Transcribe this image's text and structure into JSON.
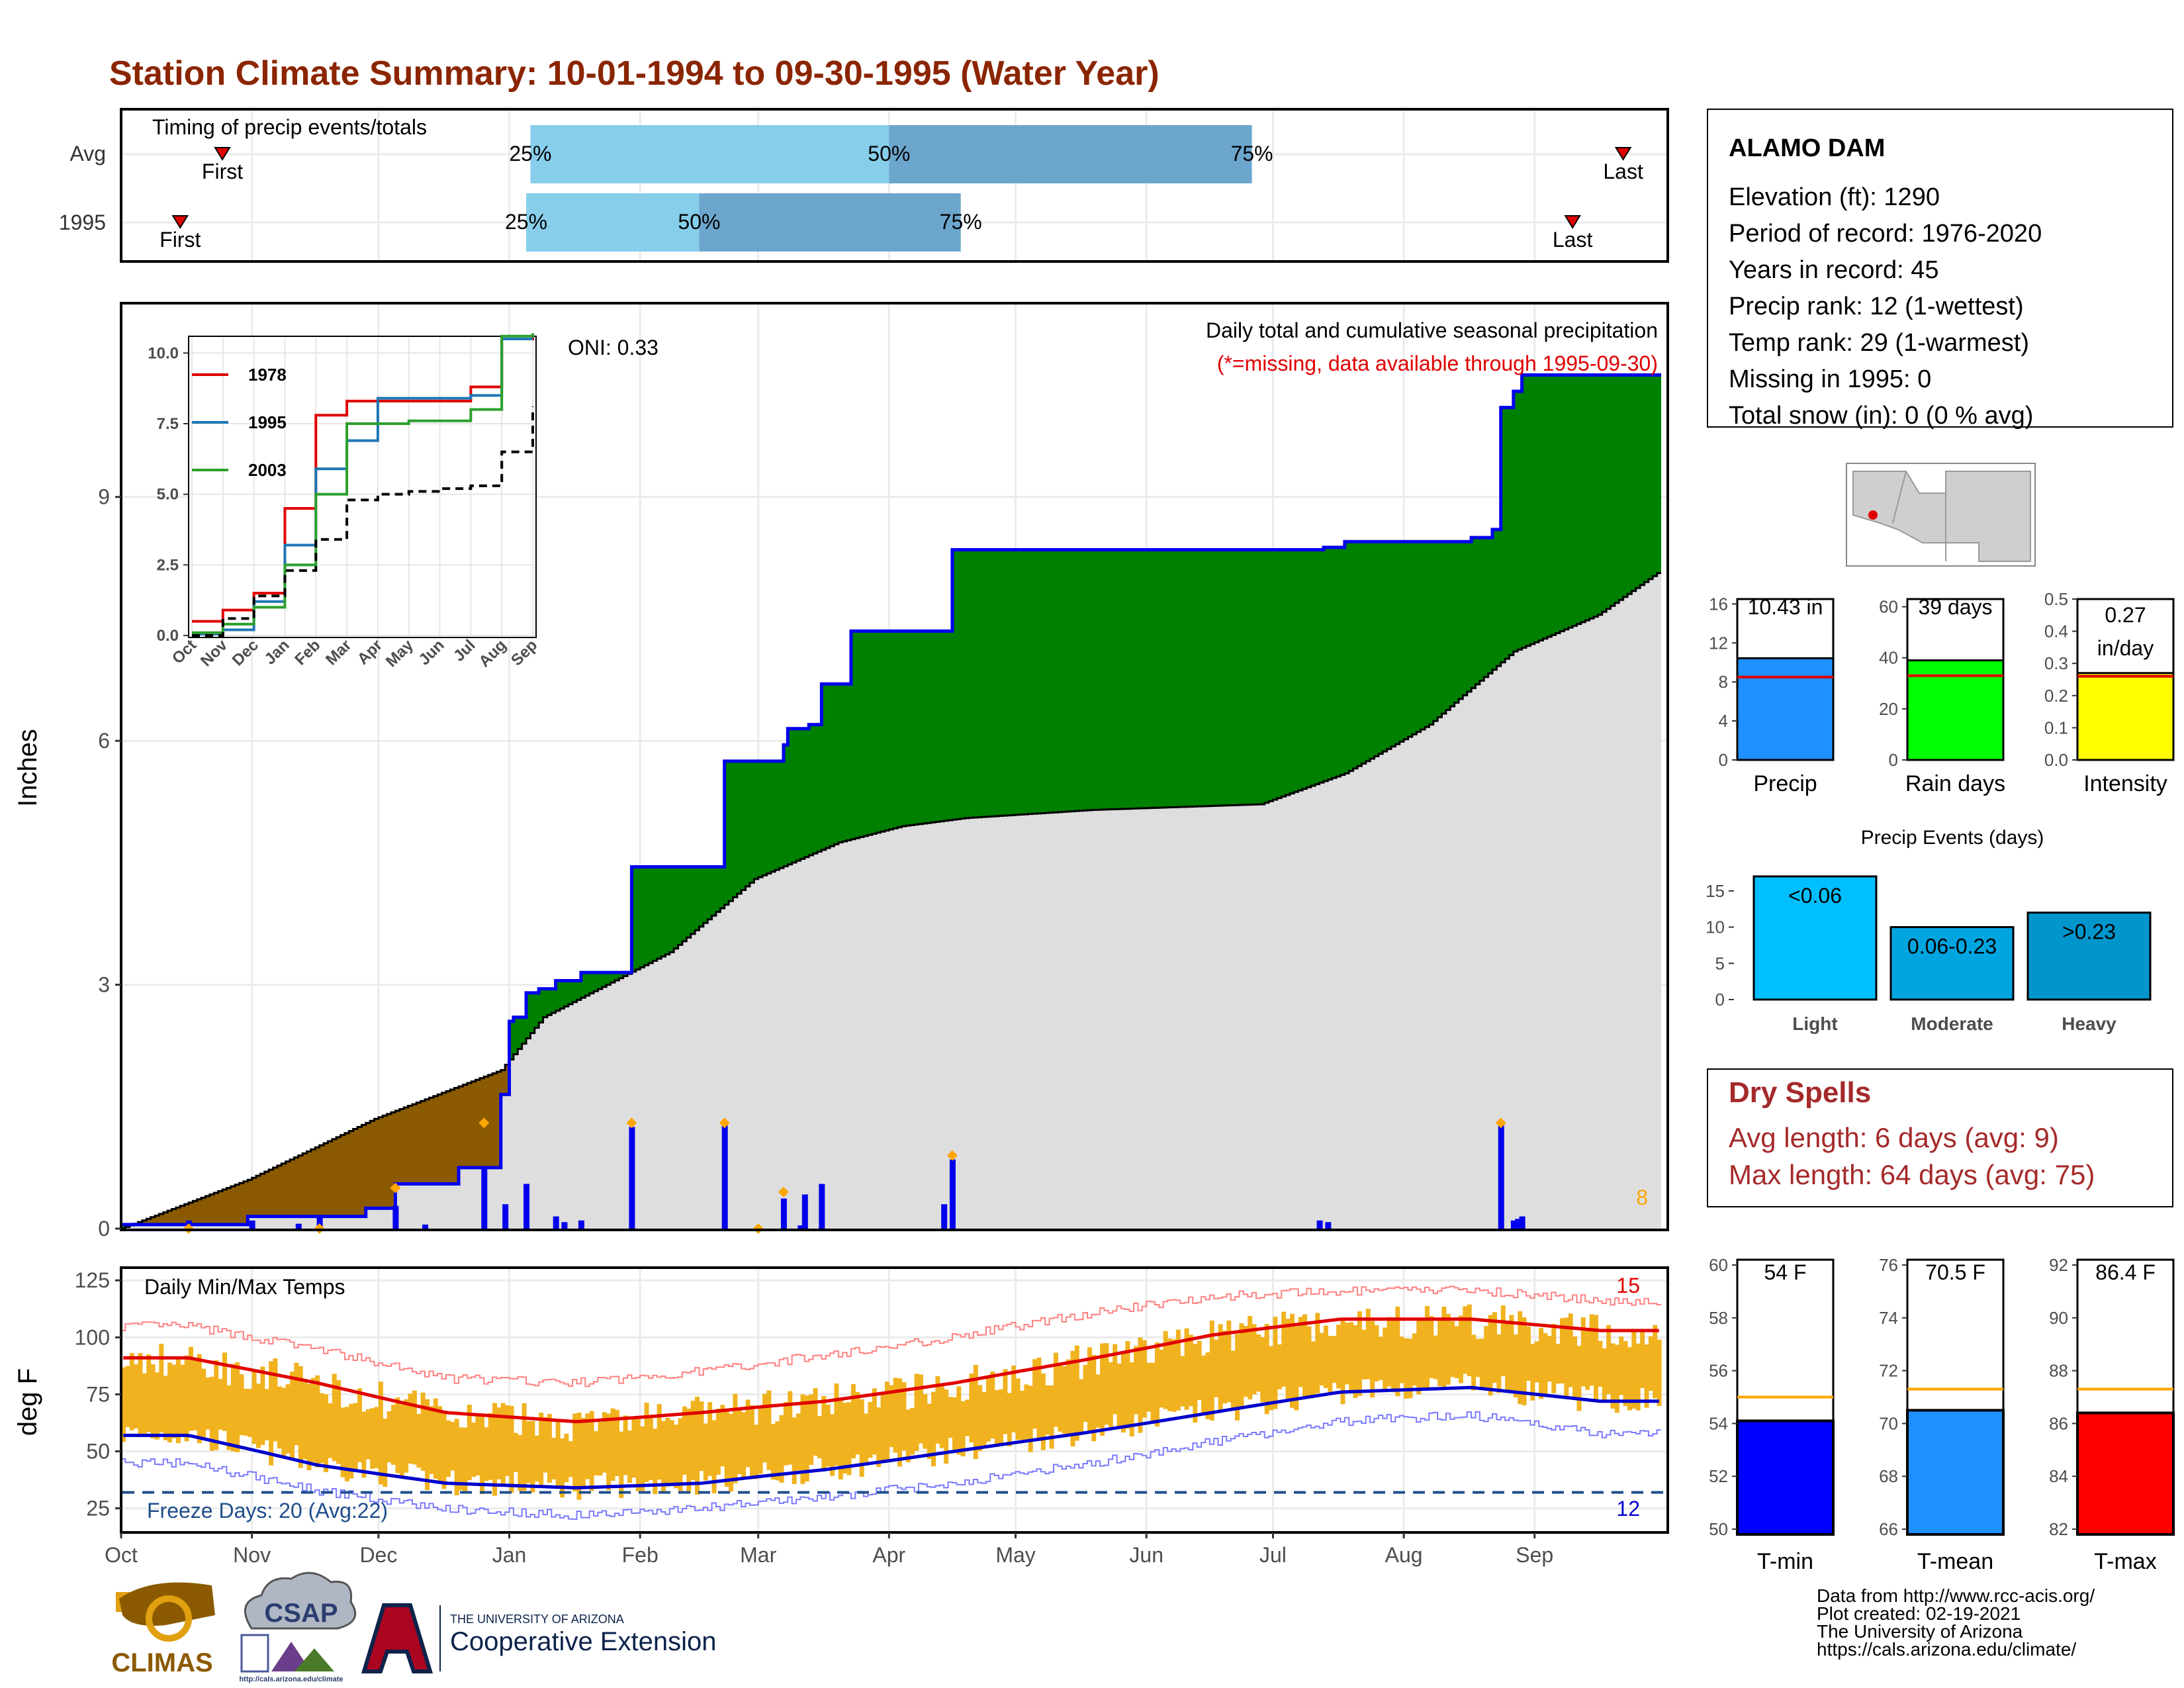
{
  "title": "Station Climate Summary: 10-01-1994 to 09-30-1995 (Water Year)",
  "months": [
    "Oct",
    "Nov",
    "Dec",
    "Jan",
    "Feb",
    "Mar",
    "Apr",
    "May",
    "Jun",
    "Jul",
    "Aug",
    "Sep"
  ],
  "colors": {
    "title": "#8b2500",
    "red": "#e00000",
    "dryspell": "#a52a2a",
    "green": "#008000",
    "brown": "#8b5a00",
    "gray": "#dedede",
    "blue": "#0000ee",
    "orange": "#ffa500",
    "tempbar": "#f0b21e"
  },
  "timing": {
    "title": "Timing of precip events/totals",
    "rows": [
      {
        "label": "Avg",
        "first_day": 24,
        "last_day": 356,
        "q25": 97,
        "q50": 182,
        "q75": 268,
        "first_label": "First",
        "last_label": "Last",
        "q25_label": "25%",
        "q50_label": "50%",
        "q75_label": "75%"
      },
      {
        "label": "1995",
        "first_day": 14,
        "last_day": 344,
        "q25": 96,
        "q50": 137,
        "q75": 199,
        "first_label": "First",
        "last_label": "Last",
        "q25_label": "25%",
        "q50_label": "50%",
        "q75_label": "75%"
      }
    ]
  },
  "precip_panel": {
    "ylabel": "Inches",
    "yticks": [
      "0",
      "3",
      "6",
      "9"
    ],
    "oni": "ONI: 0.33",
    "note1": "Daily total and cumulative seasonal precipitation",
    "note2": "(*=missing, data available through 1995-09-30)",
    "count_label": "8"
  },
  "inset": {
    "yticks": [
      "0.0",
      "2.5",
      "5.0",
      "7.5",
      "10.0"
    ],
    "months": [
      "Oct",
      "Nov",
      "Dec",
      "Jan",
      "Feb",
      "Mar",
      "Apr",
      "May",
      "Jun",
      "Jul",
      "Aug",
      "Sep"
    ],
    "legend": [
      {
        "name": "1978",
        "color": "#e00000"
      },
      {
        "name": "1995",
        "color": "#1f77b4"
      },
      {
        "name": "2003",
        "color": "#2ca02c"
      }
    ]
  },
  "temp_panel": {
    "ylabel": "deg F",
    "title": "Daily Min/Max Temps",
    "yticks": [
      "25",
      "50",
      "75",
      "100",
      "125"
    ],
    "freeze_label": "Freeze Days: 20 (Avg:22)",
    "high_count": "15",
    "low_count": "12"
  },
  "station": {
    "name": "ALAMO DAM",
    "lines": [
      "Elevation (ft): 1290",
      "Period of record: 1976-2020",
      "Years in record: 45",
      "Precip rank: 12 (1-wettest)",
      "Temp rank: 29 (1-warmest)",
      "Missing in 1995: 0",
      "Total snow (in): 0 (0 % avg)"
    ]
  },
  "mini_bars": [
    {
      "label": "Precip",
      "value_text": "10.43 in",
      "value_text2": "",
      "value": 10.43,
      "avg": 8.5,
      "ymax": 16.5,
      "yticks": [
        "0",
        "4",
        "8",
        "12",
        "16"
      ],
      "tickvals": [
        0,
        4,
        8,
        12,
        16
      ],
      "color": "#1e90ff"
    },
    {
      "label": "Rain days",
      "value_text": "39 days",
      "value_text2": "",
      "value": 39,
      "avg": 33,
      "ymax": 63,
      "yticks": [
        "0",
        "20",
        "40",
        "60"
      ],
      "tickvals": [
        0,
        20,
        40,
        60
      ],
      "color": "#00ff00"
    },
    {
      "label": "Intensity",
      "value_text": "0.27",
      "value_text2": "in/day",
      "value": 0.27,
      "avg": 0.26,
      "ymax": 0.5,
      "yticks": [
        "0.0",
        "0.1",
        "0.2",
        "0.3",
        "0.4",
        "0.5"
      ],
      "tickvals": [
        0,
        0.1,
        0.2,
        0.3,
        0.4,
        0.5
      ],
      "color": "#ffff00"
    }
  ],
  "precip_events": {
    "title": "Precip Events (days)",
    "categories": [
      "Light",
      "Moderate",
      "Heavy"
    ],
    "bar_labels": [
      "<0.06",
      "0.06-0.23",
      ">0.23"
    ],
    "values": [
      17,
      10,
      12
    ],
    "yticks": [
      "0",
      "5",
      "10",
      "15"
    ],
    "colors": [
      "#00bfff",
      "#00a5e0",
      "#0096cc"
    ]
  },
  "dry_spells": {
    "title": "Dry Spells",
    "line1": "Avg length: 6 days (avg: 9)",
    "line2": "Max length: 64 days (avg: 75)"
  },
  "temp_bars": [
    {
      "label": "T-min",
      "value_text": "54 F",
      "value": 54.1,
      "avg": 55.0,
      "ymin": 49.8,
      "ymax": 60.2,
      "yticks": [
        "50",
        "52",
        "54",
        "56",
        "58",
        "60"
      ],
      "tickvals": [
        50,
        52,
        54,
        56,
        58,
        60
      ],
      "color": "#0000ff"
    },
    {
      "label": "T-mean",
      "value_text": "70.5 F",
      "value": 70.5,
      "avg": 71.3,
      "ymin": 65.8,
      "ymax": 76.2,
      "yticks": [
        "66",
        "68",
        "70",
        "72",
        "74",
        "76"
      ],
      "tickvals": [
        66,
        68,
        70,
        72,
        74,
        76
      ],
      "color": "#1e90ff"
    },
    {
      "label": "T-max",
      "value_text": "86.4 F",
      "value": 86.4,
      "avg": 87.3,
      "ymin": 81.8,
      "ymax": 92.2,
      "yticks": [
        "82",
        "84",
        "86",
        "88",
        "90",
        "92"
      ],
      "tickvals": [
        82,
        84,
        86,
        88,
        90,
        92
      ],
      "color": "#ff0000"
    }
  ],
  "credits": [
    "Data from http://www.rcc-acis.org/",
    "Plot created: 02-19-2021",
    "The University of Arizona",
    "https://cals.arizona.edu/climate/"
  ],
  "logos": {
    "climas": "CLIMAS",
    "csap": "CSAP",
    "csap_url": "http://cals.arizona.edu/climate",
    "ua1": "THE UNIVERSITY OF ARIZONA",
    "ua2": "Cooperative Extension"
  },
  "chart_data": [
    {
      "type": "area",
      "title": "Daily total and cumulative seasonal precipitation",
      "ylabel": "Inches",
      "ylim": [
        0,
        11.4
      ],
      "cumulative_1995_steps": [
        [
          0,
          0.05
        ],
        [
          15,
          0.05
        ],
        [
          30,
          0.15
        ],
        [
          47,
          0.15
        ],
        [
          58,
          0.25
        ],
        [
          63,
          0.25
        ],
        [
          65,
          0.55
        ],
        [
          72,
          0.55
        ],
        [
          80,
          0.75
        ],
        [
          88,
          0.75
        ],
        [
          90,
          1.65
        ],
        [
          91,
          1.65
        ],
        [
          92,
          2.55
        ],
        [
          93,
          2.6
        ],
        [
          96,
          2.9
        ],
        [
          99,
          2.95
        ],
        [
          103,
          3.05
        ],
        [
          109,
          3.15
        ],
        [
          121,
          4.45
        ],
        [
          140,
          4.45
        ],
        [
          143,
          5.75
        ],
        [
          153,
          5.75
        ],
        [
          157,
          5.95
        ],
        [
          158,
          6.15
        ],
        [
          163,
          6.2
        ],
        [
          166,
          6.7
        ],
        [
          171,
          6.7
        ],
        [
          173,
          7.35
        ],
        [
          183,
          7.35
        ],
        [
          195,
          7.35
        ],
        [
          197,
          8.35
        ],
        [
          280,
          8.35
        ],
        [
          285,
          8.38
        ],
        [
          290,
          8.45
        ],
        [
          320,
          8.5
        ],
        [
          325,
          8.6
        ],
        [
          327,
          10.1
        ],
        [
          330,
          10.3
        ],
        [
          332,
          10.5
        ],
        [
          355,
          10.5
        ],
        [
          365,
          10.5
        ]
      ],
      "average_cumulative": [
        [
          0,
          0.0
        ],
        [
          30,
          0.6
        ],
        [
          60,
          1.35
        ],
        [
          90,
          1.95
        ],
        [
          100,
          2.6
        ],
        [
          130,
          3.4
        ],
        [
          150,
          4.3
        ],
        [
          170,
          4.75
        ],
        [
          185,
          4.95
        ],
        [
          200,
          5.05
        ],
        [
          230,
          5.15
        ],
        [
          270,
          5.22
        ],
        [
          290,
          5.6
        ],
        [
          310,
          6.2
        ],
        [
          330,
          7.1
        ],
        [
          350,
          7.55
        ],
        [
          365,
          8.1
        ]
      ],
      "daily_precip": [
        [
          16,
          0.1
        ],
        [
          31,
          0.1
        ],
        [
          42,
          0.06
        ],
        [
          47,
          0.15
        ],
        [
          65,
          0.28
        ],
        [
          72,
          0.05
        ],
        [
          86,
          0.75
        ],
        [
          91,
          0.3
        ],
        [
          96,
          0.55
        ],
        [
          103,
          0.15
        ],
        [
          105,
          0.08
        ],
        [
          109,
          0.1
        ],
        [
          121,
          1.25
        ],
        [
          143,
          1.3
        ],
        [
          151,
          0.02
        ],
        [
          157,
          0.37
        ],
        [
          161,
          0.04
        ],
        [
          162,
          0.42
        ],
        [
          166,
          0.55
        ],
        [
          195,
          0.3
        ],
        [
          197,
          0.85
        ],
        [
          284,
          0.1
        ],
        [
          286,
          0.08
        ],
        [
          327,
          1.3
        ],
        [
          330,
          0.1
        ],
        [
          331,
          0.12
        ],
        [
          332,
          0.15
        ]
      ],
      "flagged_days": [
        [
          16,
          0.0
        ],
        [
          47,
          0.0
        ],
        [
          65,
          0.5
        ],
        [
          86,
          1.3
        ],
        [
          121,
          1.3
        ],
        [
          143,
          1.3
        ],
        [
          151,
          0.0
        ],
        [
          157,
          0.45
        ],
        [
          197,
          0.9
        ],
        [
          327,
          1.3
        ]
      ]
    },
    {
      "type": "line",
      "title": "",
      "x": [
        "Oct",
        "Nov",
        "Dec",
        "Jan",
        "Feb",
        "Mar",
        "Apr",
        "May",
        "Jun",
        "Jul",
        "Aug",
        "Sep"
      ],
      "ylim": [
        0,
        10.5
      ],
      "series": [
        {
          "name": "1978",
          "values": [
            0.5,
            0.9,
            1.5,
            4.5,
            7.8,
            8.3,
            8.3,
            8.3,
            8.3,
            8.8,
            10.5,
            10.6
          ]
        },
        {
          "name": "1995",
          "values": [
            0.05,
            0.2,
            1.2,
            3.2,
            5.9,
            6.9,
            8.4,
            8.4,
            8.4,
            8.5,
            10.5,
            10.5
          ]
        },
        {
          "name": "2003",
          "values": [
            0.1,
            0.4,
            1.0,
            2.5,
            5.0,
            7.5,
            7.5,
            7.6,
            7.6,
            8.0,
            10.6,
            10.7
          ]
        },
        {
          "name": "",
          "values": [
            0.0,
            0.6,
            1.4,
            2.3,
            3.4,
            4.8,
            5.0,
            5.1,
            5.2,
            5.3,
            6.5,
            8.1
          ]
        }
      ]
    },
    {
      "type": "bar",
      "title": "Daily Min/Max Temps",
      "ylabel": "deg F",
      "ylim": [
        15,
        130
      ],
      "freeze_threshold": 32,
      "monthly_avg_max": [
        91,
        80,
        67,
        63,
        67,
        72,
        80,
        90,
        101,
        108,
        108,
        103
      ],
      "monthly_avg_min": [
        57,
        44,
        36,
        34,
        36,
        42,
        50,
        58,
        67,
        76,
        78,
        72
      ],
      "monthly_record_max": [
        105,
        95,
        82,
        80,
        85,
        92,
        100,
        110,
        118,
        120,
        121,
        116
      ],
      "monthly_record_min": [
        45,
        33,
        25,
        22,
        25,
        30,
        36,
        44,
        54,
        63,
        66,
        58
      ]
    },
    {
      "type": "bar",
      "title": "",
      "categories": [
        "Precip",
        "Rain days",
        "Intensity"
      ],
      "values": [
        10.43,
        39,
        0.27
      ]
    },
    {
      "type": "bar",
      "title": "Precip Events (days)",
      "categories": [
        "Light",
        "Moderate",
        "Heavy"
      ],
      "values": [
        17,
        10,
        12
      ]
    },
    {
      "type": "bar",
      "title": "",
      "categories": [
        "T-min",
        "T-mean",
        "T-max"
      ],
      "values": [
        54.1,
        70.5,
        86.4
      ]
    }
  ]
}
